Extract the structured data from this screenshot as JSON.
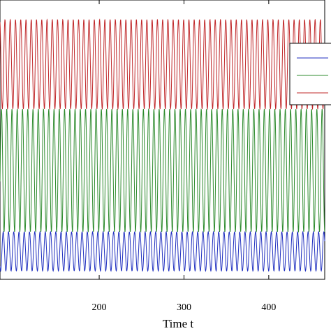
{
  "chart_data": {
    "type": "line",
    "title": "",
    "xlabel": "Time t",
    "ylabel": "",
    "xlim": [
      83,
      466
    ],
    "ylim": [
      0,
      1
    ],
    "x_ticks": [
      200,
      300,
      400
    ],
    "grid": false,
    "legend": {
      "position": "top-right",
      "entries": [
        "",
        "",
        ""
      ]
    },
    "period": 6.2,
    "series": [
      {
        "name": "",
        "color": "#1f2fbf",
        "min": 0.03,
        "max": 0.17,
        "phase": 0.0
      },
      {
        "name": "",
        "color": "#2e8b2e",
        "min": 0.17,
        "max": 0.61,
        "phase": 2.1
      },
      {
        "name": "",
        "color": "#c0282a",
        "min": 0.61,
        "max": 0.93,
        "phase": 4.2
      }
    ]
  }
}
